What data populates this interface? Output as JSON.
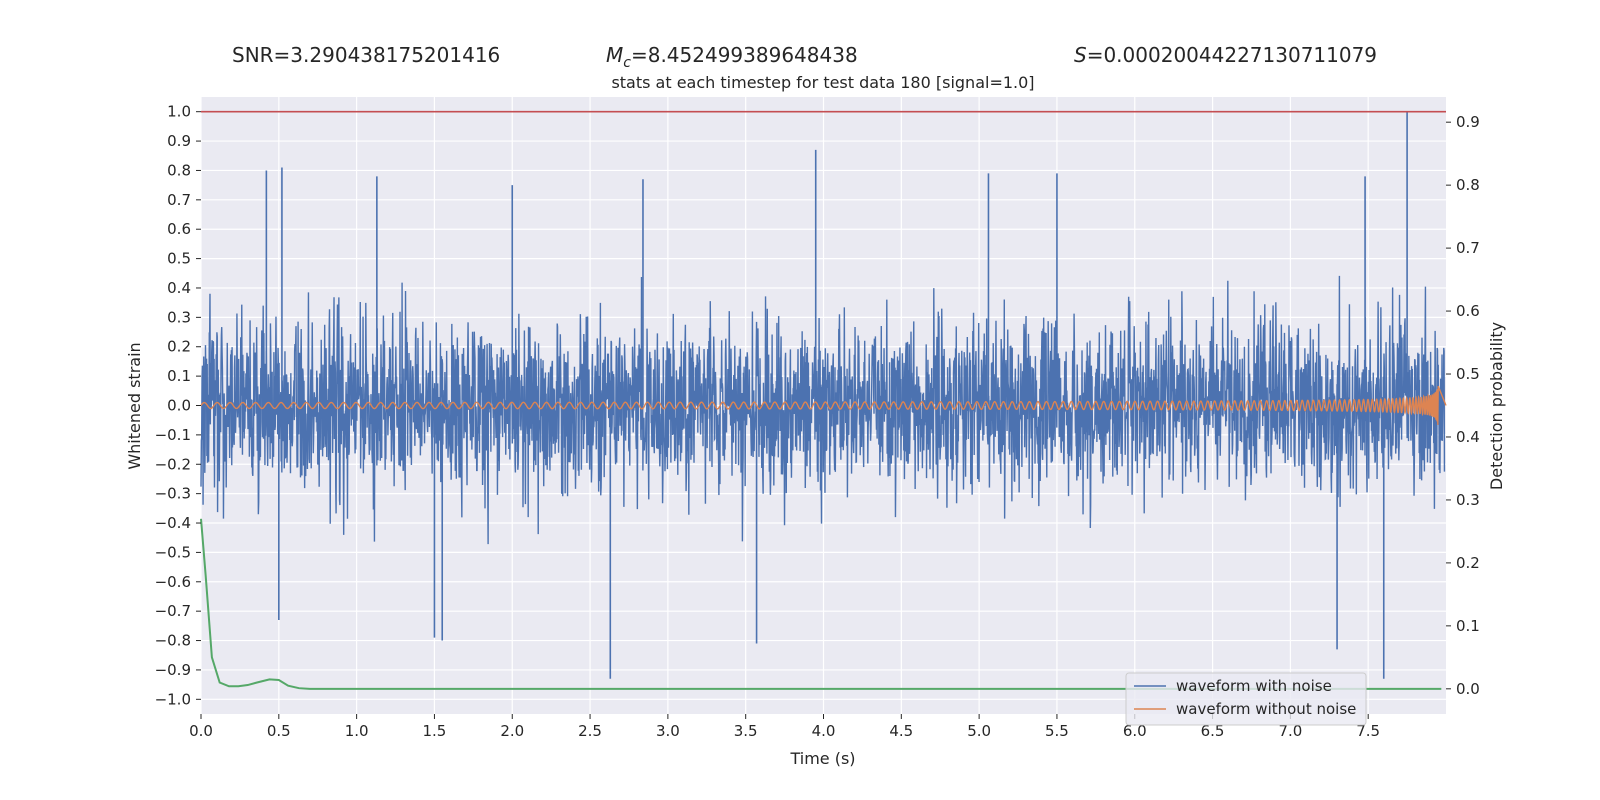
{
  "header": {
    "snr": "SNR=3.290438175201416",
    "mc_symbol": "M",
    "mc_sub": "c",
    "mc_value": "=8.452499389648438",
    "s_symbol": "S",
    "s_value": "=0.00020044227130711079"
  },
  "colors": {
    "plot_background": "#eaeaf2",
    "grid": "#ffffff",
    "noisy": "#4c72b0",
    "clean": "#dd8452",
    "probability": "#55a868",
    "threshold": "#c44e52",
    "text": "#262626"
  },
  "chart_data": {
    "type": "line",
    "title": "stats at each timestep for test data 180 [signal=1.0]",
    "xlabel": "Time (s)",
    "ylabel": "Whitened strain",
    "y2label": "Detection probability",
    "xlim": [
      0.0,
      8.0
    ],
    "ylim": [
      -1.05,
      1.05
    ],
    "y2lim": [
      -0.04,
      0.94
    ],
    "x_ticks": [
      0.0,
      0.5,
      1.0,
      1.5,
      2.0,
      2.5,
      3.0,
      3.5,
      4.0,
      4.5,
      5.0,
      5.5,
      6.0,
      6.5,
      7.0,
      7.5
    ],
    "y_ticks": [
      1.0,
      0.9,
      0.8,
      0.7,
      0.6,
      0.5,
      0.4,
      0.3,
      0.2,
      0.1,
      0.0,
      -0.1,
      -0.2,
      -0.3,
      -0.4,
      -0.5,
      -0.6,
      -0.7,
      -0.8,
      -0.9,
      -1.0
    ],
    "y_tick_labels": [
      "1.0",
      "0.9",
      "0.8",
      "0.7",
      "0.6",
      "0.5",
      "0.4",
      "0.3",
      "0.2",
      "0.1",
      "0.0",
      "−0.1",
      "−0.2",
      "−0.3",
      "−0.4",
      "−0.5",
      "−0.6",
      "−0.7",
      "−0.8",
      "−0.9",
      "−1.0"
    ],
    "y2_ticks": [
      0.9,
      0.8,
      0.7,
      0.6,
      0.5,
      0.4,
      0.3,
      0.2,
      0.1,
      0.0
    ],
    "grid": true,
    "legend_position": "lower-right",
    "threshold_y": 1.0,
    "series": [
      {
        "name": "waveform with noise",
        "description": "noise-dominated whitened strain, envelope roughly ±0.4 with spikes to ±0.8",
        "envelope": 0.42,
        "peaks": [
          [
            0.42,
            0.8
          ],
          [
            0.52,
            0.81
          ],
          [
            1.13,
            0.78
          ],
          [
            2.0,
            0.75
          ],
          [
            2.84,
            0.77
          ],
          [
            3.95,
            0.87
          ],
          [
            5.06,
            0.79
          ],
          [
            5.5,
            0.79
          ],
          [
            7.48,
            0.78
          ],
          [
            7.75,
            1.0
          ]
        ],
        "troughs": [
          [
            0.5,
            -0.73
          ],
          [
            1.5,
            -0.79
          ],
          [
            1.55,
            -0.8
          ],
          [
            2.63,
            -0.93
          ],
          [
            3.57,
            -0.81
          ],
          [
            7.3,
            -0.83
          ],
          [
            7.6,
            -0.93
          ]
        ]
      },
      {
        "name": "waveform without noise",
        "description": "chirp signal whose amplitude and frequency grow toward merger near t=7.95 s",
        "merger_time": 7.95,
        "start_amplitude": 0.01,
        "peak_amplitude": 0.12
      },
      {
        "name": "detection probability",
        "axis": "right",
        "x": [
          0.0,
          0.03,
          0.07,
          0.12,
          0.18,
          0.24,
          0.3,
          0.36,
          0.44,
          0.5,
          0.56,
          0.63,
          0.7,
          1.0,
          2.0,
          3.0,
          4.0,
          5.0,
          6.0,
          7.0,
          7.97
        ],
        "y": [
          0.27,
          0.18,
          0.05,
          0.01,
          0.004,
          0.004,
          0.006,
          0.01,
          0.015,
          0.014,
          0.005,
          0.001,
          0.0,
          0.0,
          0.0,
          0.0,
          0.0,
          0.0,
          0.0,
          0.0,
          0.0
        ]
      }
    ]
  }
}
